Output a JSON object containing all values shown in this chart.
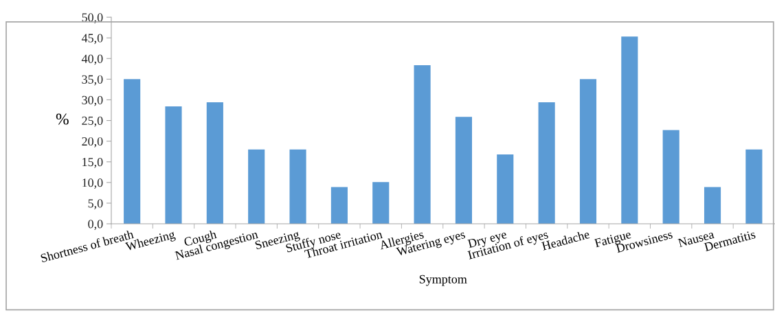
{
  "chart_data": {
    "type": "bar",
    "xlabel": "Symptom",
    "ylabel": "%",
    "categories": [
      "Shortness of breath",
      "Wheezing",
      "Cough",
      "Nasal congestion",
      "Sneezing",
      "Stuffy nose",
      "Throat irritation",
      "Allergies",
      "Watering eyes",
      "Dry eye",
      "Irritation of eyes",
      "Headache",
      "Fatigue",
      "Drowsiness",
      "Nausea",
      "Dermatitis"
    ],
    "values": [
      35.0,
      28.4,
      29.4,
      18.0,
      18.0,
      8.9,
      10.1,
      38.4,
      25.9,
      16.8,
      29.4,
      35.0,
      45.3,
      22.7,
      8.9,
      18.0
    ],
    "color": "#5b9bd5",
    "ylim": [
      0,
      50
    ],
    "yticks": [
      {
        "value": 0,
        "label": "0,0"
      },
      {
        "value": 5,
        "label": "5,0"
      },
      {
        "value": 10,
        "label": "10,0"
      },
      {
        "value": 15,
        "label": "15,0"
      },
      {
        "value": 20,
        "label": "20,0"
      },
      {
        "value": 25,
        "label": "25,0"
      },
      {
        "value": 30,
        "label": "30,0"
      },
      {
        "value": 35,
        "label": "35,0"
      },
      {
        "value": 40,
        "label": "40,0"
      },
      {
        "value": 45,
        "label": "45,0"
      },
      {
        "value": 50,
        "label": "50,0"
      }
    ],
    "grid": false
  }
}
